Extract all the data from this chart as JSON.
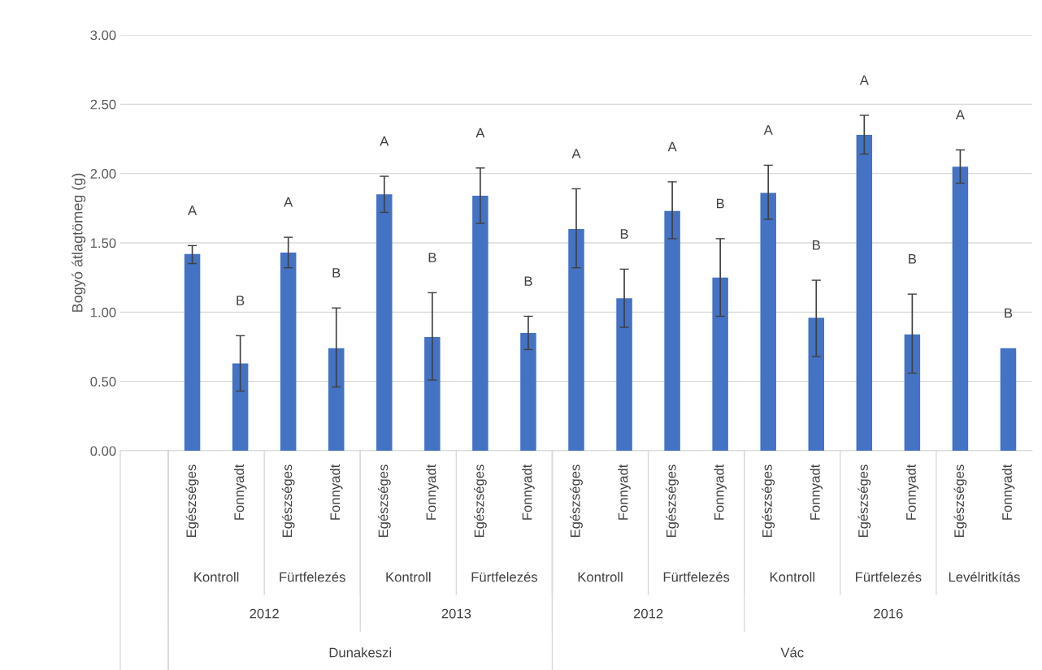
{
  "chart_data": {
    "type": "bar",
    "ylabel": "Bogyó átlagtömeg (g)",
    "categories": [
      null,
      "Egészséges",
      "Fonnyadt",
      "Egészséges",
      "Fonnyadt",
      "Egészséges",
      "Fonnyadt",
      "Egészséges",
      "Fonnyadt",
      "Egészséges",
      "Fonnyadt",
      "Egészséges",
      "Fonnyadt",
      "Egészséges",
      "Fonnyadt",
      "Egészséges",
      "Fonnyadt",
      "Egészséges",
      "Fonnyadt"
    ],
    "values": [
      null,
      1.42,
      0.63,
      1.43,
      0.74,
      1.85,
      0.82,
      1.84,
      0.85,
      1.6,
      1.1,
      1.73,
      1.25,
      1.86,
      0.96,
      2.28,
      0.84,
      2.05,
      0.74
    ],
    "errors": [
      null,
      [
        1.35,
        1.48
      ],
      [
        0.43,
        0.83
      ],
      [
        1.32,
        1.54
      ],
      [
        0.46,
        1.03
      ],
      [
        1.72,
        1.98
      ],
      [
        0.51,
        1.14
      ],
      [
        1.64,
        2.04
      ],
      [
        0.73,
        0.97
      ],
      [
        1.32,
        1.89
      ],
      [
        0.89,
        1.31
      ],
      [
        1.53,
        1.94
      ],
      [
        0.97,
        1.53
      ],
      [
        1.67,
        2.06
      ],
      [
        0.68,
        1.23
      ],
      [
        2.14,
        2.42
      ],
      [
        0.56,
        1.13
      ],
      [
        1.93,
        2.17
      ],
      null
    ],
    "color": "#4472c4",
    "annotations": [
      "A",
      "B",
      "A",
      "B",
      "A",
      "B",
      "A",
      "B",
      "A",
      "B",
      "A",
      "B",
      "A",
      "B",
      "A",
      "B",
      "A",
      "B",
      "Kontroll",
      "Fürtfelezés",
      "Kontroll",
      "Fürtfelezés",
      "Kontroll",
      "Fürtfelezés",
      "Kontroll",
      "Fürtfelezés",
      "Levélritkítás",
      "2012",
      "2013",
      "2012",
      "2016",
      "Dunakeszi",
      "Vác"
    ],
    "ylim": [
      0,
      3
    ],
    "yticks": [
      {
        "value": 0,
        "label": "0.00"
      },
      {
        "value": 0.5,
        "label": "0.50"
      },
      {
        "value": 1,
        "label": "1.00"
      },
      {
        "value": 1.5,
        "label": "1.50"
      },
      {
        "value": 2,
        "label": "2.00"
      },
      {
        "value": 2.5,
        "label": "2.50"
      },
      {
        "value": 3,
        "label": "3.00"
      }
    ],
    "grid": "y"
  }
}
